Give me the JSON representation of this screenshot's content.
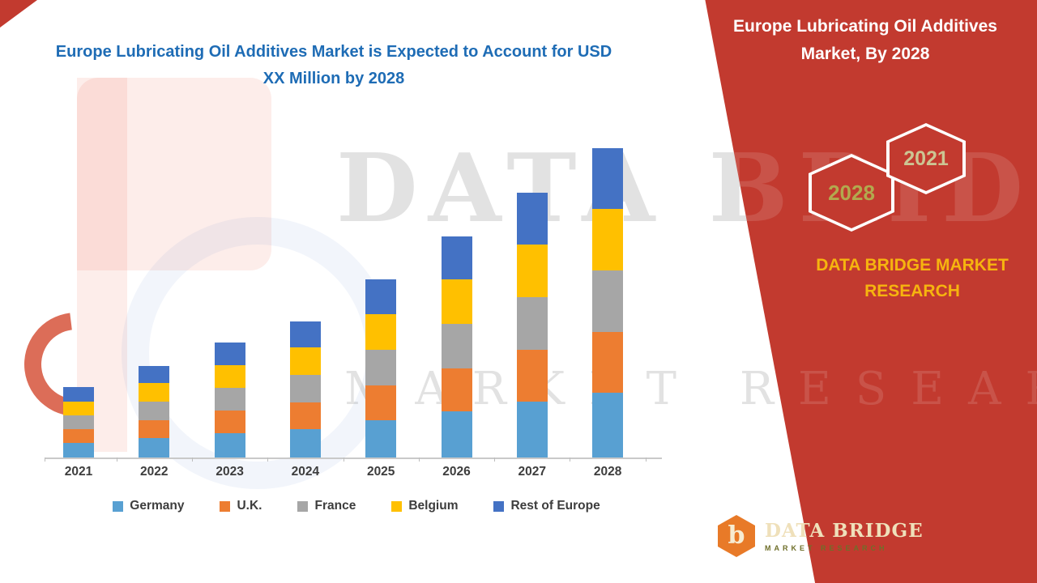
{
  "colors": {
    "accent_red": "#c23a2f",
    "gold": "#f6b40f",
    "title_blue": "#1e6cb5",
    "logo_orange": "#e87a28"
  },
  "left_header": {
    "title": "Europe Lubricating Oil Additives Market is Expected to Account for USD XX Million by 2028"
  },
  "right_panel": {
    "title": "Europe Lubricating Oil Additives Market, By 2028",
    "hexagons": [
      {
        "label": "2028"
      },
      {
        "label": "2021"
      }
    ],
    "brand_text": "DATA BRIDGE MARKET RESEARCH",
    "logo": {
      "mark_letter": "b",
      "name": "DATA BRIDGE",
      "tagline": "MARKET RESEARCH"
    }
  },
  "watermark": {
    "line1": "DATA BRIDGE",
    "line2": "MARKET RESEARCH"
  },
  "chart_data": {
    "type": "bar",
    "stacked": true,
    "title": "",
    "xlabel": "",
    "ylabel": "",
    "categories": [
      "2021",
      "2022",
      "2023",
      "2024",
      "2025",
      "2026",
      "2027",
      "2028"
    ],
    "series": [
      {
        "name": "Germany",
        "color": "#58a0d2",
        "values": [
          1.8,
          2.4,
          3.0,
          3.5,
          4.6,
          5.7,
          6.9,
          8.0
        ]
      },
      {
        "name": "U.K.",
        "color": "#ed7d31",
        "values": [
          1.7,
          2.2,
          2.8,
          3.3,
          4.3,
          5.3,
          6.4,
          7.5
        ]
      },
      {
        "name": "France",
        "color": "#a6a6a6",
        "values": [
          1.7,
          2.3,
          2.8,
          3.4,
          4.4,
          5.5,
          6.5,
          7.6
        ]
      },
      {
        "name": "Belgium",
        "color": "#ffc000",
        "values": [
          1.7,
          2.3,
          2.8,
          3.4,
          4.4,
          5.5,
          6.5,
          7.6
        ]
      },
      {
        "name": "Rest of Europe",
        "color": "#4472c4",
        "values": [
          1.8,
          2.1,
          2.8,
          3.2,
          4.3,
          5.3,
          6.4,
          7.5
        ]
      }
    ],
    "ylim": [
      0,
      45
    ],
    "y_axis_visible": false,
    "value_labels_visible": false,
    "grid": false,
    "legend_position": "bottom"
  }
}
